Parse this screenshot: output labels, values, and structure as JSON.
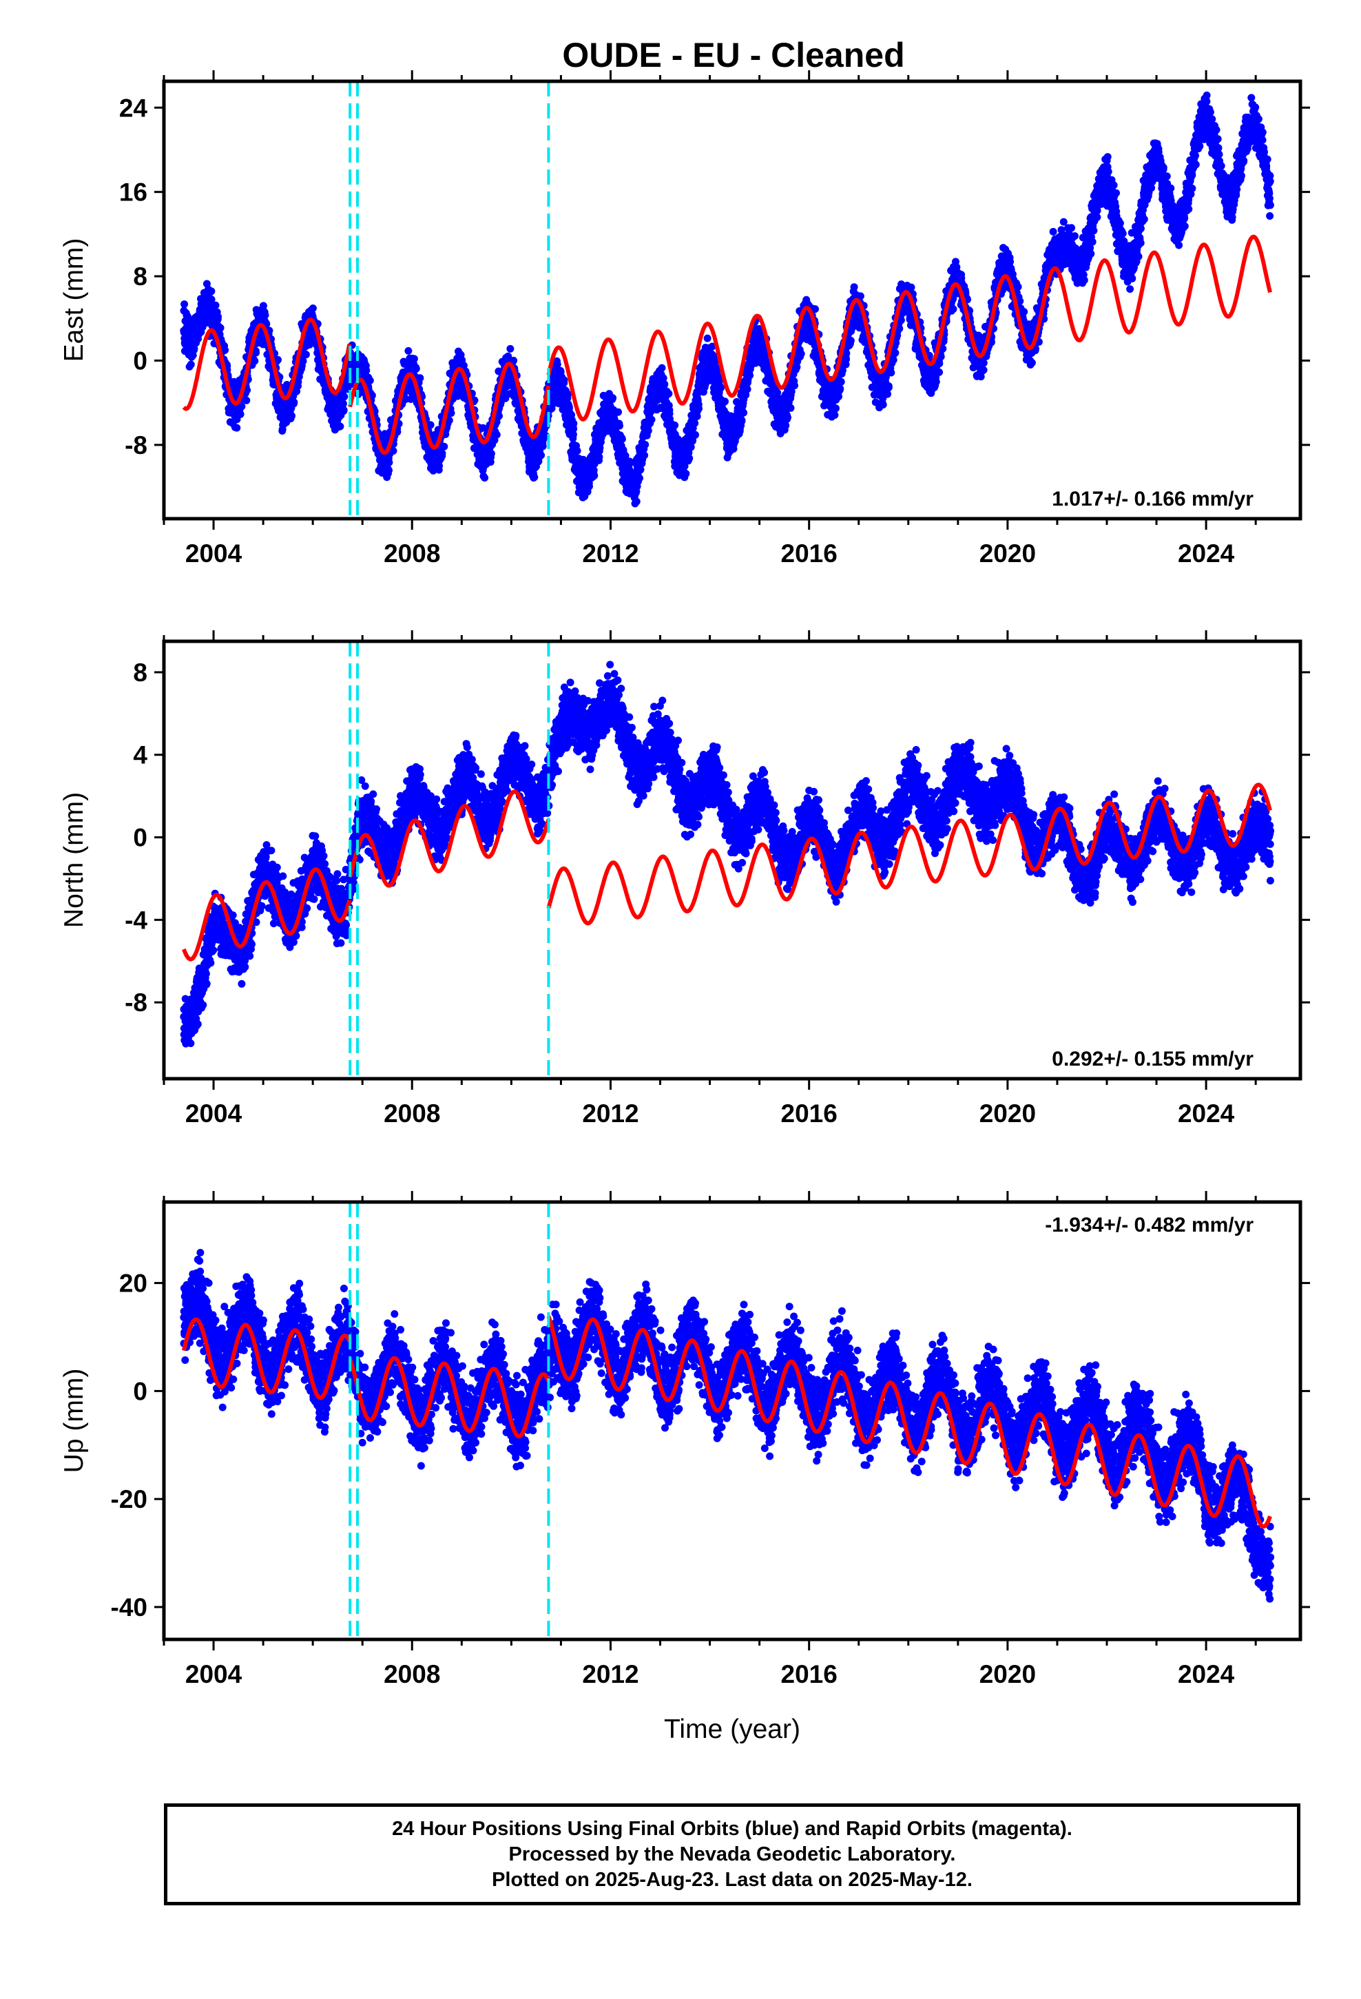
{
  "title": "OUDE  - EU - Cleaned",
  "footer": {
    "line1": "24 Hour Positions Using Final Orbits (blue) and Rapid Orbits (magenta).",
    "line2": "Processed by the Nevada Geodetic Laboratory.",
    "line3": "Plotted on 2025-Aug-23. Last data on 2025-May-12."
  },
  "colors": {
    "data": "#0000ff",
    "model": "#ff0000",
    "steps": "#00e5ee"
  },
  "chart_data": [
    {
      "type": "scatter",
      "ylabel": "East (mm)",
      "xlim": [
        2003.0,
        2025.9
      ],
      "ylim": [
        -15,
        26.5
      ],
      "yticks": [
        -8,
        0,
        8,
        16,
        24
      ],
      "xticks": [
        2004,
        2008,
        2012,
        2016,
        2020,
        2024
      ],
      "rate_label": "1.017+/- 0.166 mm/yr",
      "step_epochs": [
        2006.75,
        2006.9,
        2010.75
      ],
      "model": {
        "name": "fit",
        "segments": [
          {
            "t0": 2003.4,
            "t1": 2006.75,
            "offset": -1.0,
            "rate": 0.5,
            "amp": 3.6,
            "phase": 0.3
          },
          {
            "t0": 2006.75,
            "t1": 2010.75,
            "offset": -5.5,
            "rate": 0.5,
            "amp": 3.6,
            "phase": 0.3
          },
          {
            "t0": 2010.75,
            "t1": 2025.3,
            "offset": -2.5,
            "rate": 0.75,
            "amp": 3.6,
            "phase": 0.3
          }
        ]
      },
      "observations": {
        "name": "daily positions",
        "start": 2003.4,
        "end": 2025.3,
        "knots": [
          [
            2003.4,
            7.0
          ],
          [
            2004.0,
            0.0
          ],
          [
            2006.7,
            -1.0
          ],
          [
            2006.9,
            -5.0
          ],
          [
            2010.7,
            -5.0
          ],
          [
            2011.9,
            -9.0
          ],
          [
            2014.0,
            -4.0
          ],
          [
            2016.0,
            0.0
          ],
          [
            2018.0,
            2.0
          ],
          [
            2020.0,
            5.0
          ],
          [
            2021.0,
            6.0
          ],
          [
            2021.3,
            13.0
          ],
          [
            2022.5,
            13.0
          ],
          [
            2024.2,
            20.0
          ],
          [
            2025.3,
            18.0
          ]
        ],
        "amp": 4.0,
        "noise": 1.4,
        "phase": 0.3
      }
    },
    {
      "type": "scatter",
      "ylabel": "North (mm)",
      "xlim": [
        2003.0,
        2025.9
      ],
      "ylim": [
        -11.7,
        9.5
      ],
      "yticks": [
        -8,
        -4,
        0,
        4,
        8
      ],
      "xticks": [
        2004,
        2008,
        2012,
        2016,
        2020,
        2024
      ],
      "rate_label": "0.292+/- 0.155 mm/yr",
      "step_epochs": [
        2006.75,
        2006.9,
        2010.75
      ],
      "model": {
        "name": "fit",
        "segments": [
          {
            "t0": 2003.4,
            "t1": 2006.75,
            "offset": -4.6,
            "rate": 0.62,
            "amp": 1.4,
            "phase": 0.2
          },
          {
            "t0": 2006.75,
            "t1": 2010.75,
            "offset": -1.5,
            "rate": 0.7,
            "amp": 1.4,
            "phase": 0.2
          },
          {
            "t0": 2010.75,
            "t1": 2025.3,
            "offset": -3.0,
            "rate": 0.29,
            "amp": 1.4,
            "phase": 0.2
          }
        ]
      },
      "observations": {
        "name": "daily positions",
        "start": 2003.4,
        "end": 2025.3,
        "knots": [
          [
            2003.4,
            -8.5
          ],
          [
            2004.0,
            -5.5
          ],
          [
            2005.0,
            -3.0
          ],
          [
            2006.7,
            -2.5
          ],
          [
            2006.9,
            -0.5
          ],
          [
            2008.0,
            1.0
          ],
          [
            2010.7,
            3.0
          ],
          [
            2011.5,
            6.5
          ],
          [
            2012.5,
            4.5
          ],
          [
            2014.0,
            2.0
          ],
          [
            2015.5,
            0.0
          ],
          [
            2016.5,
            -0.5
          ],
          [
            2018.0,
            1.5
          ],
          [
            2019.5,
            2.5
          ],
          [
            2021.5,
            -1.0
          ],
          [
            2023.0,
            0.0
          ],
          [
            2025.3,
            -0.5
          ]
        ],
        "amp": 1.2,
        "noise": 1.0,
        "phase": 0.2
      }
    },
    {
      "type": "scatter",
      "ylabel": "Up (mm)",
      "xlim": [
        2003.0,
        2025.9
      ],
      "ylim": [
        -46,
        35
      ],
      "yticks": [
        -40,
        -20,
        0,
        20
      ],
      "xticks": [
        2004,
        2008,
        2012,
        2016,
        2020,
        2024
      ],
      "xlabel": "Time (year)",
      "rate_label": "-1.934+/- 0.482 mm/yr",
      "step_epochs": [
        2006.75,
        2006.9,
        2010.75
      ],
      "model": {
        "name": "fit",
        "segments": [
          {
            "t0": 2003.4,
            "t1": 2006.75,
            "offset": 7.5,
            "rate": -1.0,
            "amp": 6.0,
            "phase": 0.6
          },
          {
            "t0": 2006.75,
            "t1": 2010.75,
            "offset": 1.0,
            "rate": -1.0,
            "amp": 6.0,
            "phase": 0.6
          },
          {
            "t0": 2010.75,
            "t1": 2025.3,
            "offset": 9.0,
            "rate": -1.95,
            "amp": 6.0,
            "phase": 0.6
          }
        ]
      },
      "observations": {
        "name": "daily positions",
        "start": 2003.4,
        "end": 2025.3,
        "knots": [
          [
            2003.4,
            12.0
          ],
          [
            2006.7,
            5.0
          ],
          [
            2006.9,
            2.0
          ],
          [
            2010.7,
            -2.0
          ],
          [
            2010.9,
            10.0
          ],
          [
            2016.0,
            1.0
          ],
          [
            2019.0,
            -3.0
          ],
          [
            2022.0,
            -8.0
          ],
          [
            2024.0,
            -15.0
          ],
          [
            2025.3,
            -28.0
          ]
        ],
        "amp": 5.5,
        "noise": 5.0,
        "phase": 0.6
      }
    }
  ]
}
